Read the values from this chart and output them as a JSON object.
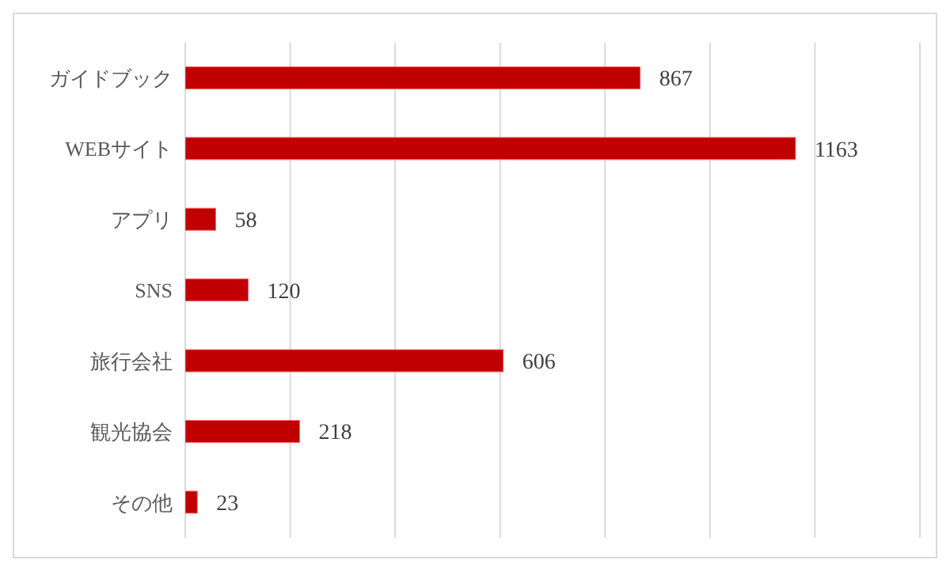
{
  "chart_data": {
    "type": "bar",
    "orientation": "horizontal",
    "categories": [
      "ガイドブック",
      "WEBサイト",
      "アプリ",
      "SNS",
      "旅行会社",
      "観光協会",
      "その他"
    ],
    "values": [
      867,
      1163,
      58,
      120,
      606,
      218,
      23
    ],
    "color": "#c00000",
    "xlim": [
      0,
      1400
    ],
    "grid": "x",
    "tick_labels": "y",
    "data_labels": true
  }
}
